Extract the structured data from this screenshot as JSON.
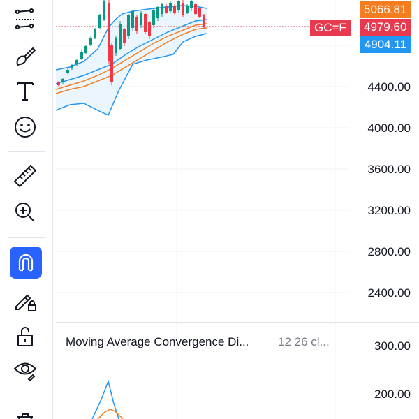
{
  "toolbar": {
    "tools": [
      {
        "name": "trend-line-tools-icon"
      },
      {
        "name": "brush-icon"
      },
      {
        "name": "text-icon"
      },
      {
        "name": "emoji-icon"
      },
      {
        "name": "ruler-icon"
      },
      {
        "name": "zoom-in-icon"
      },
      {
        "name": "magnet-icon",
        "active": true
      },
      {
        "name": "lock-drawing-icon"
      },
      {
        "name": "unlock-icon"
      },
      {
        "name": "eye-icon"
      },
      {
        "name": "trash-icon"
      }
    ],
    "accent_color": "#2962ff"
  },
  "price_axis": {
    "labels": [
      "4400.00",
      "4000.00",
      "3600.00",
      "3200.00",
      "2800.00",
      "2400.00"
    ],
    "tags": {
      "upper": {
        "text": "5066.81",
        "color": "#f57c1f"
      },
      "last": {
        "text": "4979.60",
        "color": "#e8394e"
      },
      "lower": {
        "text": "4904.11",
        "color": "#2196f3"
      }
    },
    "symbol_label": "GC=F"
  },
  "macd": {
    "title": "Moving Average Convergence Di...",
    "params": "12 26 cl...",
    "axis_labels": [
      "300.00",
      "200.00"
    ]
  },
  "colors": {
    "up": "#089981",
    "down": "#f23645",
    "band_fill": "#e3f2fd",
    "band_line": "#2196f3",
    "ma_orange": "#f57c1f"
  }
}
